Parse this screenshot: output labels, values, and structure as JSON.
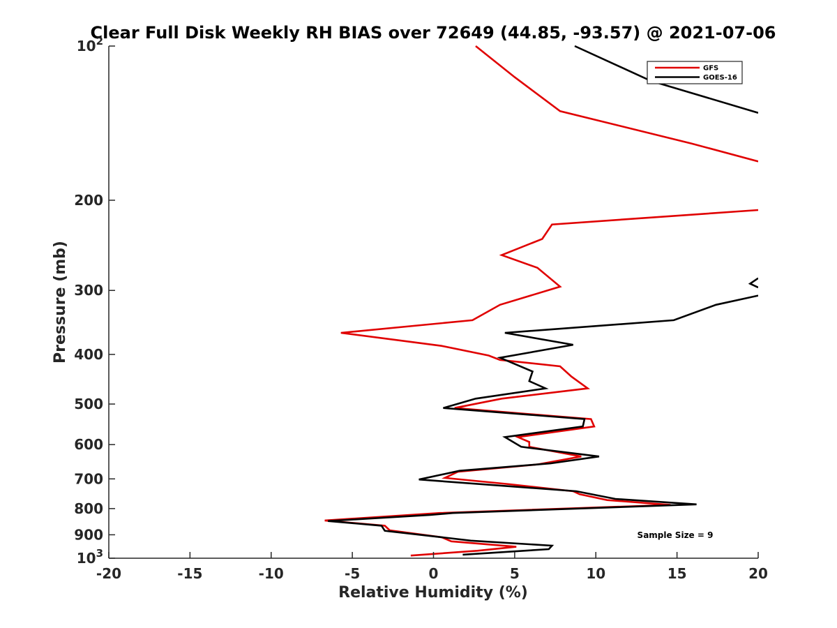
{
  "chart_data": {
    "type": "line",
    "title": "Clear Full Disk Weekly RH BIAS over 72649 (44.85, -93.57) @ 2021-07-06",
    "xlabel": "Relative Humidity (%)",
    "ylabel": "Pressure (mb)",
    "xlim": [
      -20,
      20
    ],
    "ylim": [
      100,
      1000
    ],
    "y_scale": "log",
    "y_reversed": true,
    "grid": false,
    "legend_position": "top-right",
    "x_ticks": [
      "-20",
      "-15",
      "-10",
      "-5",
      "0",
      "5",
      "10",
      "15",
      "20"
    ],
    "y_ticks": [
      {
        "value": 100,
        "base": "10",
        "exp": "2"
      },
      {
        "value": 200,
        "label": "200"
      },
      {
        "value": 300,
        "label": "300"
      },
      {
        "value": 400,
        "label": "400"
      },
      {
        "value": 500,
        "label": "500"
      },
      {
        "value": 600,
        "label": "600"
      },
      {
        "value": 700,
        "label": "700"
      },
      {
        "value": 800,
        "label": "800"
      },
      {
        "value": 900,
        "label": "900"
      },
      {
        "value": 1000,
        "base": "10",
        "exp": "3"
      }
    ],
    "annotation": "Sample Size = 9",
    "series": [
      {
        "name": "GFS",
        "color": "#e00000",
        "points": [
          [
            2.6,
            100
          ],
          [
            5.0,
            115
          ],
          [
            7.8,
            134
          ],
          [
            15.9,
            155
          ],
          [
            20.0,
            168
          ],
          [
            null,
            null
          ],
          [
            20.0,
            209
          ],
          [
            7.3,
            223
          ],
          [
            6.7,
            238
          ],
          [
            4.2,
            256
          ],
          [
            6.4,
            271
          ],
          [
            7.8,
            295
          ],
          [
            4.1,
            320
          ],
          [
            2.4,
            343
          ],
          [
            -5.7,
            363
          ],
          [
            0.5,
            385
          ],
          [
            3.4,
            402
          ],
          [
            4.1,
            410
          ],
          [
            7.8,
            422
          ],
          [
            8.5,
            442
          ],
          [
            9.5,
            466
          ],
          [
            4.2,
            488
          ],
          [
            1.3,
            509
          ],
          [
            9.7,
            535
          ],
          [
            9.9,
            553
          ],
          [
            5.2,
            580
          ],
          [
            5.9,
            593
          ],
          [
            5.9,
            606
          ],
          [
            9.1,
            633
          ],
          [
            6.4,
            656
          ],
          [
            1.5,
            678
          ],
          [
            0.7,
            697
          ],
          [
            4.7,
            717
          ],
          [
            8.6,
            740
          ],
          [
            9.0,
            750
          ],
          [
            10.7,
            770
          ],
          [
            14.6,
            787
          ],
          [
            0.4,
            816
          ],
          [
            -6.7,
            844
          ],
          [
            -3.0,
            864
          ],
          [
            -2.7,
            882
          ],
          [
            0.5,
            910
          ],
          [
            1.1,
            927
          ],
          [
            5.1,
            950
          ],
          [
            2.7,
            967
          ],
          [
            -1.4,
            988
          ]
        ]
      },
      {
        "name": "GOES-16",
        "color": "#000000",
        "points": [
          [
            8.7,
            100
          ],
          [
            13.4,
            117
          ],
          [
            20.0,
            135
          ],
          [
            null,
            null
          ],
          [
            20.0,
            284
          ],
          [
            19.5,
            291
          ],
          [
            20.0,
            296
          ],
          [
            null,
            null
          ],
          [
            20.0,
            307
          ],
          [
            17.4,
            320
          ],
          [
            14.8,
            343
          ],
          [
            4.4,
            363
          ],
          [
            8.6,
            383
          ],
          [
            4.1,
            406
          ],
          [
            6.1,
            432
          ],
          [
            5.9,
            451
          ],
          [
            6.9,
            466
          ],
          [
            2.6,
            488
          ],
          [
            0.6,
            509
          ],
          [
            9.3,
            535
          ],
          [
            9.2,
            553
          ],
          [
            4.4,
            580
          ],
          [
            5.4,
            606
          ],
          [
            10.2,
            633
          ],
          [
            7.2,
            653
          ],
          [
            1.6,
            675
          ],
          [
            -0.9,
            702
          ],
          [
            8.8,
            740
          ],
          [
            11.2,
            766
          ],
          [
            16.2,
            785
          ],
          [
            1.2,
            816
          ],
          [
            -0.2,
            823
          ],
          [
            -6.5,
            846
          ],
          [
            -3.2,
            864
          ],
          [
            -3.0,
            884
          ],
          [
            0.5,
            910
          ],
          [
            2.3,
            924
          ],
          [
            7.3,
            945
          ],
          [
            7.1,
            960
          ],
          [
            1.8,
            984
          ]
        ]
      }
    ]
  }
}
